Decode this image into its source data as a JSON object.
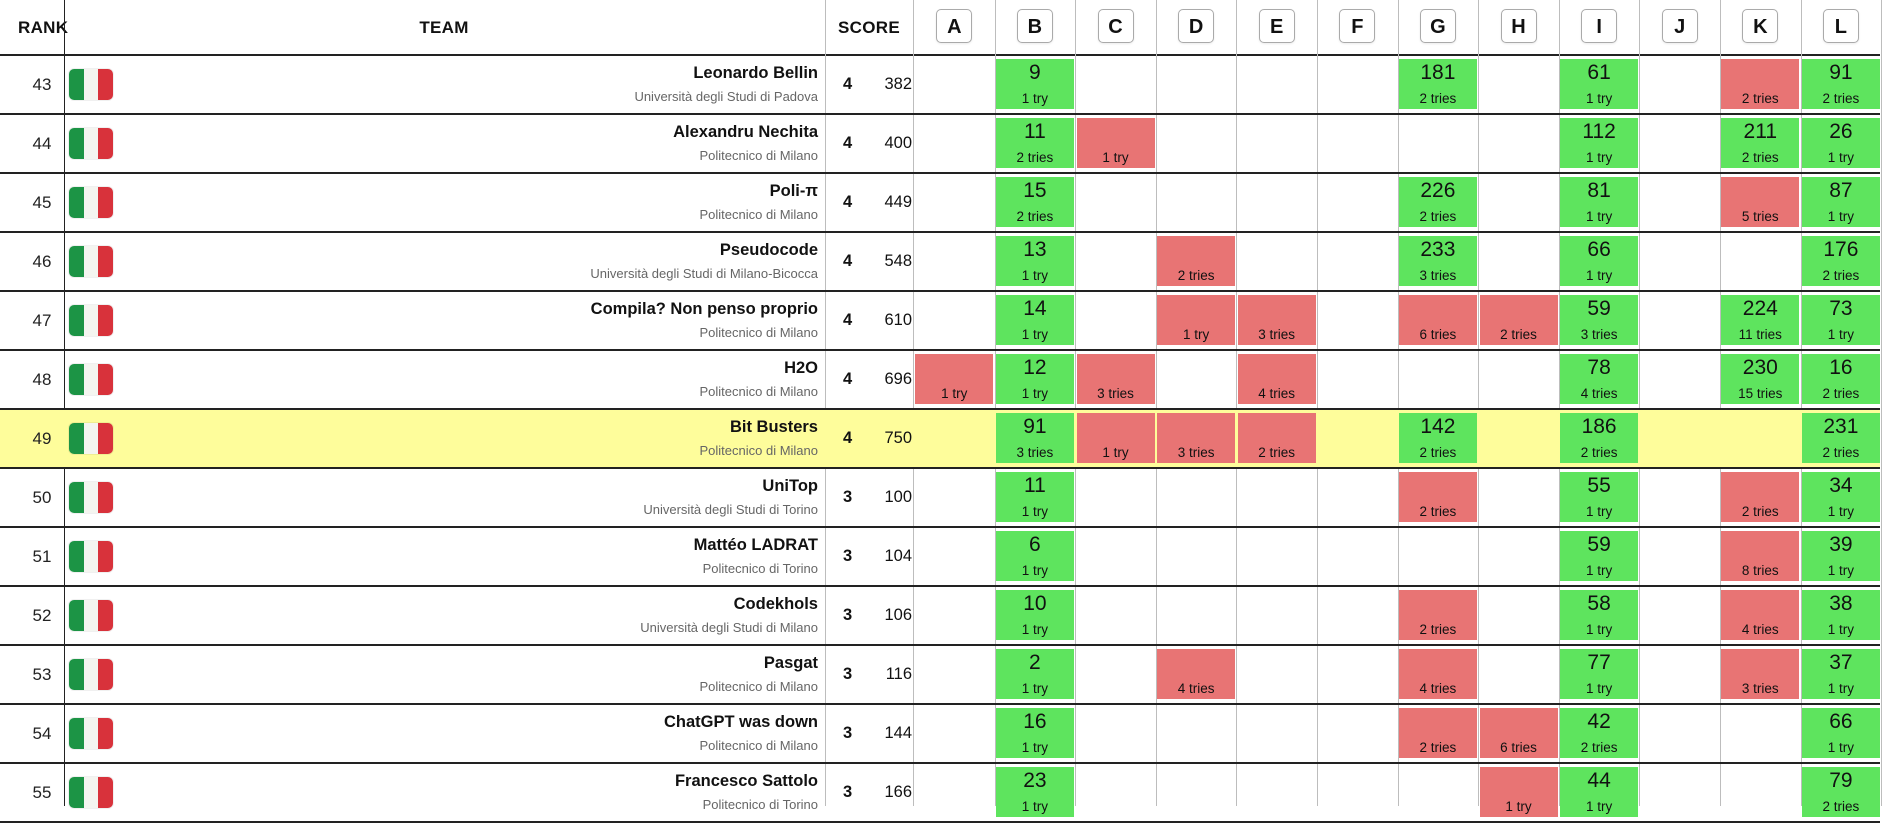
{
  "header": {
    "rank_label": "RANK",
    "team_label": "TEAM",
    "score_label": "SCORE"
  },
  "problems": [
    "A",
    "B",
    "C",
    "D",
    "E",
    "F",
    "G",
    "H",
    "I",
    "J",
    "K",
    "L"
  ],
  "colors": {
    "solved": "#5ee45e",
    "failed": "#e87474",
    "highlight": "#fefd9b",
    "flag": [
      "#1c9445",
      "#f4f5f0",
      "#d8323b"
    ]
  },
  "flag_icon": "italy-flag-icon",
  "rows": [
    {
      "rank": "43",
      "name": "Leonardo Bellin",
      "uni": "Università degli Studi di Padova",
      "solved": "4",
      "penalty": "382",
      "cells": {
        "B": {
          "s": "ok",
          "t": "9",
          "tries": "1 try"
        },
        "G": {
          "s": "ok",
          "t": "181",
          "tries": "2 tries"
        },
        "I": {
          "s": "ok",
          "t": "61",
          "tries": "1 try"
        },
        "K": {
          "s": "fail",
          "tries": "2 tries"
        },
        "L": {
          "s": "ok",
          "t": "91",
          "tries": "2 tries"
        }
      }
    },
    {
      "rank": "44",
      "name": "Alexandru Nechita",
      "uni": "Politecnico di Milano",
      "solved": "4",
      "penalty": "400",
      "cells": {
        "B": {
          "s": "ok",
          "t": "11",
          "tries": "2 tries"
        },
        "C": {
          "s": "fail",
          "tries": "1 try"
        },
        "I": {
          "s": "ok",
          "t": "112",
          "tries": "1 try"
        },
        "K": {
          "s": "ok",
          "t": "211",
          "tries": "2 tries"
        },
        "L": {
          "s": "ok",
          "t": "26",
          "tries": "1 try"
        }
      }
    },
    {
      "rank": "45",
      "name": "Poli-π",
      "uni": "Politecnico di Milano",
      "solved": "4",
      "penalty": "449",
      "cells": {
        "B": {
          "s": "ok",
          "t": "15",
          "tries": "2 tries"
        },
        "G": {
          "s": "ok",
          "t": "226",
          "tries": "2 tries"
        },
        "I": {
          "s": "ok",
          "t": "81",
          "tries": "1 try"
        },
        "K": {
          "s": "fail",
          "tries": "5 tries"
        },
        "L": {
          "s": "ok",
          "t": "87",
          "tries": "1 try"
        }
      }
    },
    {
      "rank": "46",
      "name": "Pseudocode",
      "uni": "Università degli Studi di Milano-Bicocca",
      "solved": "4",
      "penalty": "548",
      "cells": {
        "B": {
          "s": "ok",
          "t": "13",
          "tries": "1 try"
        },
        "D": {
          "s": "fail",
          "tries": "2 tries"
        },
        "G": {
          "s": "ok",
          "t": "233",
          "tries": "3 tries"
        },
        "I": {
          "s": "ok",
          "t": "66",
          "tries": "1 try"
        },
        "L": {
          "s": "ok",
          "t": "176",
          "tries": "2 tries"
        }
      }
    },
    {
      "rank": "47",
      "name": "Compila? Non penso proprio",
      "uni": "Politecnico di Milano",
      "solved": "4",
      "penalty": "610",
      "cells": {
        "B": {
          "s": "ok",
          "t": "14",
          "tries": "1 try"
        },
        "D": {
          "s": "fail",
          "tries": "1 try"
        },
        "E": {
          "s": "fail",
          "tries": "3 tries"
        },
        "G": {
          "s": "fail",
          "tries": "6 tries"
        },
        "H": {
          "s": "fail",
          "tries": "2 tries"
        },
        "I": {
          "s": "ok",
          "t": "59",
          "tries": "3 tries"
        },
        "K": {
          "s": "ok",
          "t": "224",
          "tries": "11 tries"
        },
        "L": {
          "s": "ok",
          "t": "73",
          "tries": "1 try"
        }
      }
    },
    {
      "rank": "48",
      "name": "H2O",
      "uni": "Politecnico di Milano",
      "solved": "4",
      "penalty": "696",
      "cells": {
        "A": {
          "s": "fail",
          "tries": "1 try"
        },
        "B": {
          "s": "ok",
          "t": "12",
          "tries": "1 try"
        },
        "C": {
          "s": "fail",
          "tries": "3 tries"
        },
        "E": {
          "s": "fail",
          "tries": "4 tries"
        },
        "I": {
          "s": "ok",
          "t": "78",
          "tries": "4 tries"
        },
        "K": {
          "s": "ok",
          "t": "230",
          "tries": "15 tries"
        },
        "L": {
          "s": "ok",
          "t": "16",
          "tries": "2 tries"
        }
      }
    },
    {
      "rank": "49",
      "name": "Bit Busters",
      "uni": "Politecnico di Milano",
      "solved": "4",
      "penalty": "750",
      "highlight": true,
      "cells": {
        "B": {
          "s": "ok",
          "t": "91",
          "tries": "3 tries"
        },
        "C": {
          "s": "fail",
          "tries": "1 try"
        },
        "D": {
          "s": "fail",
          "tries": "3 tries"
        },
        "E": {
          "s": "fail",
          "tries": "2 tries"
        },
        "G": {
          "s": "ok",
          "t": "142",
          "tries": "2 tries"
        },
        "I": {
          "s": "ok",
          "t": "186",
          "tries": "2 tries"
        },
        "L": {
          "s": "ok",
          "t": "231",
          "tries": "2 tries"
        }
      }
    },
    {
      "rank": "50",
      "name": "UniTop",
      "uni": "Università degli Studi di Torino",
      "solved": "3",
      "penalty": "100",
      "cells": {
        "B": {
          "s": "ok",
          "t": "11",
          "tries": "1 try"
        },
        "G": {
          "s": "fail",
          "tries": "2 tries"
        },
        "I": {
          "s": "ok",
          "t": "55",
          "tries": "1 try"
        },
        "K": {
          "s": "fail",
          "tries": "2 tries"
        },
        "L": {
          "s": "ok",
          "t": "34",
          "tries": "1 try"
        }
      }
    },
    {
      "rank": "51",
      "name": "Mattéo LADRAT",
      "uni": "Politecnico di Torino",
      "solved": "3",
      "penalty": "104",
      "cells": {
        "B": {
          "s": "ok",
          "t": "6",
          "tries": "1 try"
        },
        "I": {
          "s": "ok",
          "t": "59",
          "tries": "1 try"
        },
        "K": {
          "s": "fail",
          "tries": "8 tries"
        },
        "L": {
          "s": "ok",
          "t": "39",
          "tries": "1 try"
        }
      }
    },
    {
      "rank": "52",
      "name": "Codekhols",
      "uni": "Università degli Studi di Milano",
      "solved": "3",
      "penalty": "106",
      "cells": {
        "B": {
          "s": "ok",
          "t": "10",
          "tries": "1 try"
        },
        "G": {
          "s": "fail",
          "tries": "2 tries"
        },
        "I": {
          "s": "ok",
          "t": "58",
          "tries": "1 try"
        },
        "K": {
          "s": "fail",
          "tries": "4 tries"
        },
        "L": {
          "s": "ok",
          "t": "38",
          "tries": "1 try"
        }
      }
    },
    {
      "rank": "53",
      "name": "Pasgat",
      "uni": "Politecnico di Milano",
      "solved": "3",
      "penalty": "116",
      "cells": {
        "B": {
          "s": "ok",
          "t": "2",
          "tries": "1 try"
        },
        "D": {
          "s": "fail",
          "tries": "4 tries"
        },
        "G": {
          "s": "fail",
          "tries": "4 tries"
        },
        "I": {
          "s": "ok",
          "t": "77",
          "tries": "1 try"
        },
        "K": {
          "s": "fail",
          "tries": "3 tries"
        },
        "L": {
          "s": "ok",
          "t": "37",
          "tries": "1 try"
        }
      }
    },
    {
      "rank": "54",
      "name": "ChatGPT was down",
      "uni": "Politecnico di Milano",
      "solved": "3",
      "penalty": "144",
      "cells": {
        "B": {
          "s": "ok",
          "t": "16",
          "tries": "1 try"
        },
        "G": {
          "s": "fail",
          "tries": "2 tries"
        },
        "H": {
          "s": "fail",
          "tries": "6 tries"
        },
        "I": {
          "s": "ok",
          "t": "42",
          "tries": "2 tries"
        },
        "L": {
          "s": "ok",
          "t": "66",
          "tries": "1 try"
        }
      }
    },
    {
      "rank": "55",
      "name": "Francesco Sattolo",
      "uni": "Politecnico di Torino",
      "solved": "3",
      "penalty": "166",
      "cells": {
        "B": {
          "s": "ok",
          "t": "23",
          "tries": "1 try"
        },
        "H": {
          "s": "fail",
          "tries": "1 try"
        },
        "I": {
          "s": "ok",
          "t": "44",
          "tries": "1 try"
        },
        "L": {
          "s": "ok",
          "t": "79",
          "tries": "2 tries"
        }
      }
    }
  ]
}
